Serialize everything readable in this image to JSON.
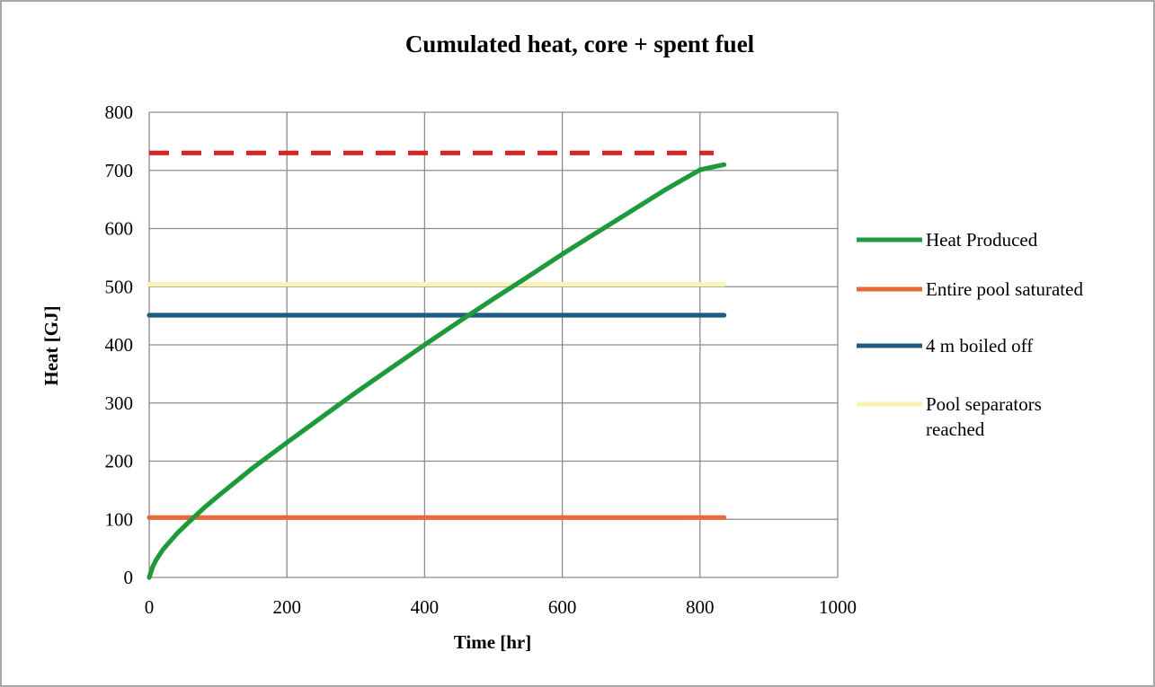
{
  "chart_data": {
    "type": "line",
    "title": "Cumulated heat, core + spent fuel",
    "xlabel": "Time [hr]",
    "ylabel": "Heat [GJ]",
    "xlim": [
      0,
      1000
    ],
    "ylim": [
      0,
      800
    ],
    "xticks": [
      "0",
      "200",
      "400",
      "600",
      "800",
      "1000"
    ],
    "yticks": [
      "0",
      "100",
      "200",
      "300",
      "400",
      "500",
      "600",
      "700",
      "800"
    ],
    "grid": true,
    "legend_position": "right",
    "series": [
      {
        "name": "Heat Produced",
        "color": "#1f9a3a",
        "x": [
          0,
          5,
          10,
          20,
          40,
          60,
          80,
          100,
          150,
          200,
          250,
          300,
          350,
          400,
          450,
          500,
          550,
          600,
          650,
          700,
          750,
          800,
          835
        ],
        "y": [
          0,
          18,
          30,
          48,
          75,
          98,
          120,
          140,
          188,
          232,
          275,
          318,
          359,
          400,
          440,
          479,
          517,
          556,
          593,
          630,
          667,
          701,
          710
        ]
      },
      {
        "name": "Entire pool saturated",
        "color": "#e8693a",
        "x": [
          0,
          835
        ],
        "y": [
          103,
          103
        ]
      },
      {
        "name": "4 m boiled off",
        "color": "#1f5b82",
        "x": [
          0,
          835
        ],
        "y": [
          451,
          451
        ]
      },
      {
        "name": "Pool separators reached",
        "color": "#fbf3b3",
        "x": [
          0,
          835
        ],
        "y": [
          504,
          504
        ]
      },
      {
        "name": "",
        "color": "#d62525",
        "dashed": true,
        "x": [
          0,
          820
        ],
        "y": [
          730,
          730
        ]
      }
    ],
    "legend": [
      {
        "label": "Heat Produced",
        "color": "#1f9a3a"
      },
      {
        "label": "Entire pool saturated",
        "color": "#e8693a"
      },
      {
        "label": "4 m boiled off",
        "color": "#1f5b82"
      },
      {
        "label": "Pool separators reached",
        "label_lines": [
          "Pool separators",
          "reached"
        ],
        "color": "#fbf3b3"
      }
    ]
  }
}
